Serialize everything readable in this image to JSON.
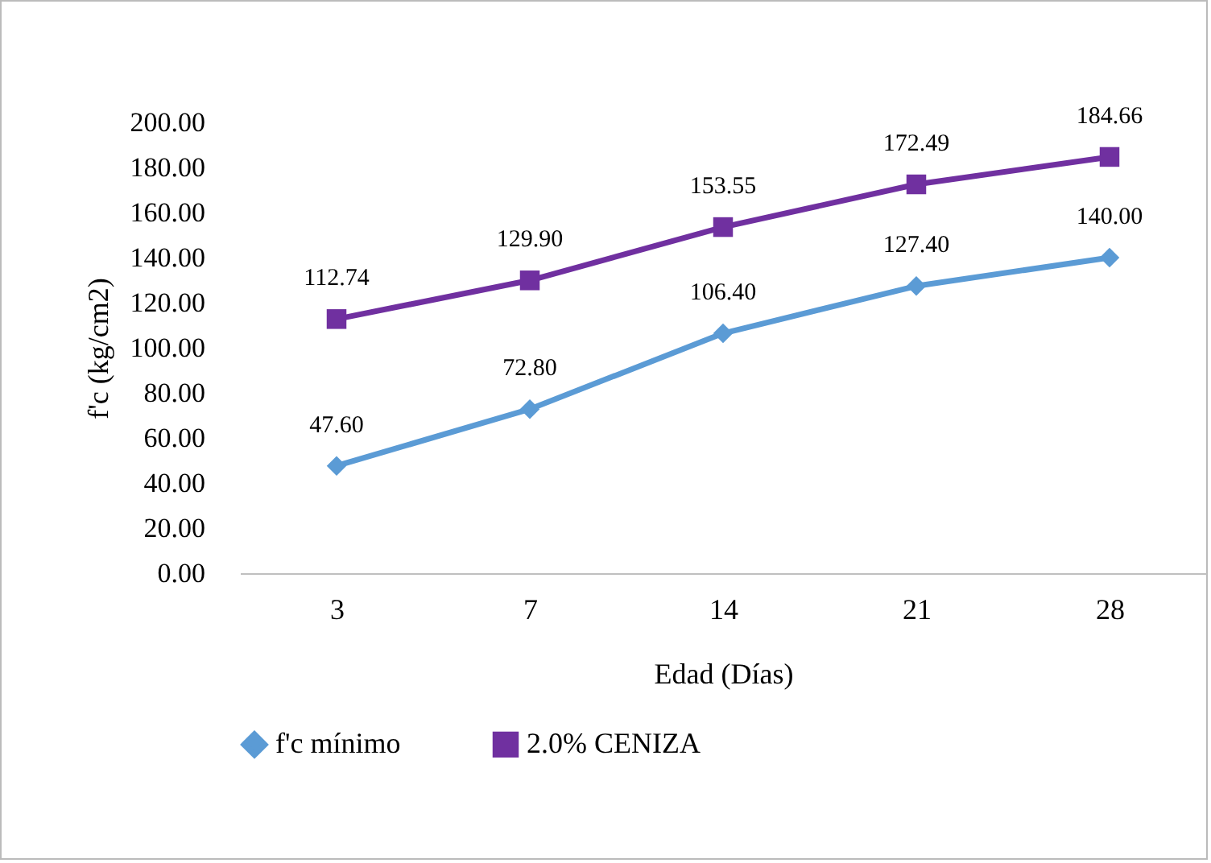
{
  "chart_data": {
    "type": "line",
    "xlabel": "Edad (Días)",
    "ylabel": "f'c (kg/cm2)",
    "categories": [
      "3",
      "7",
      "14",
      "21",
      "28"
    ],
    "series": [
      {
        "name": "f'c mínimo",
        "color": "#5b9bd5",
        "marker": "diamond",
        "values": [
          47.6,
          72.8,
          106.4,
          127.4,
          140.0
        ],
        "value_labels": [
          "47.60",
          "72.80",
          "106.40",
          "127.40",
          "140.00"
        ]
      },
      {
        "name": "2.0% CENIZA",
        "color": "#7030a0",
        "marker": "square",
        "values": [
          112.74,
          129.9,
          153.55,
          172.49,
          184.66
        ],
        "value_labels": [
          "112.74",
          "129.90",
          "153.55",
          "172.49",
          "184.66"
        ]
      }
    ],
    "ylim": [
      0,
      200
    ],
    "yticks": [
      {
        "value": 0,
        "label": "0.00"
      },
      {
        "value": 20,
        "label": "20.00"
      },
      {
        "value": 40,
        "label": "40.00"
      },
      {
        "value": 60,
        "label": "60.00"
      },
      {
        "value": 80,
        "label": "80.00"
      },
      {
        "value": 100,
        "label": "100.00"
      },
      {
        "value": 120,
        "label": "120.00"
      },
      {
        "value": 140,
        "label": "140.00"
      },
      {
        "value": 160,
        "label": "160.00"
      },
      {
        "value": 180,
        "label": "180.00"
      },
      {
        "value": 200,
        "label": "200.00"
      }
    ],
    "grid": false,
    "legend": "bottom",
    "line_style": "solid"
  }
}
